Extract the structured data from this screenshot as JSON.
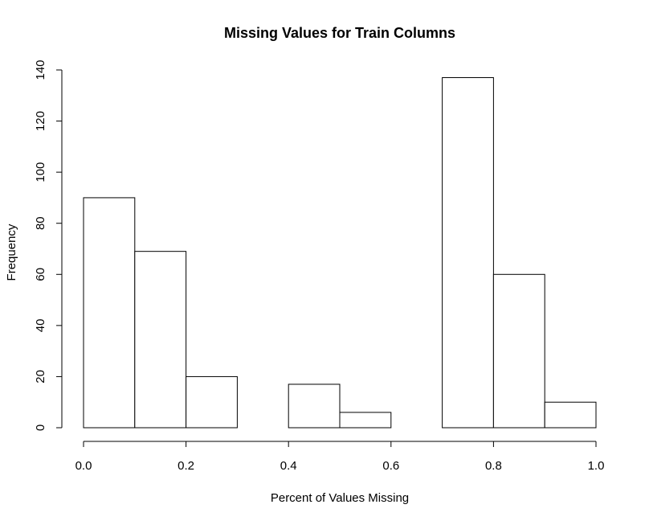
{
  "chart_data": {
    "type": "bar",
    "title": "Missing Values for Train Columns",
    "xlabel": "Percent of Values Missing",
    "ylabel": "Frequency",
    "bins": [
      {
        "from": 0.0,
        "to": 0.1,
        "value": 90
      },
      {
        "from": 0.1,
        "to": 0.2,
        "value": 69
      },
      {
        "from": 0.2,
        "to": 0.3,
        "value": 20
      },
      {
        "from": 0.3,
        "to": 0.4,
        "value": 0
      },
      {
        "from": 0.4,
        "to": 0.5,
        "value": 17
      },
      {
        "from": 0.5,
        "to": 0.6,
        "value": 6
      },
      {
        "from": 0.6,
        "to": 0.7,
        "value": 0
      },
      {
        "from": 0.7,
        "to": 0.8,
        "value": 137
      },
      {
        "from": 0.8,
        "to": 0.9,
        "value": 60
      },
      {
        "from": 0.9,
        "to": 1.0,
        "value": 10
      }
    ],
    "xlim": [
      0.0,
      1.0
    ],
    "ylim": [
      0,
      140
    ],
    "x_ticks": [
      "0.0",
      "0.2",
      "0.4",
      "0.6",
      "0.8",
      "1.0"
    ],
    "y_ticks": [
      "0",
      "20",
      "40",
      "60",
      "80",
      "100",
      "120",
      "140"
    ],
    "grid": false,
    "legend": "none",
    "colors": {
      "bar_fill": "#ffffff",
      "bar_stroke": "#000000"
    }
  }
}
